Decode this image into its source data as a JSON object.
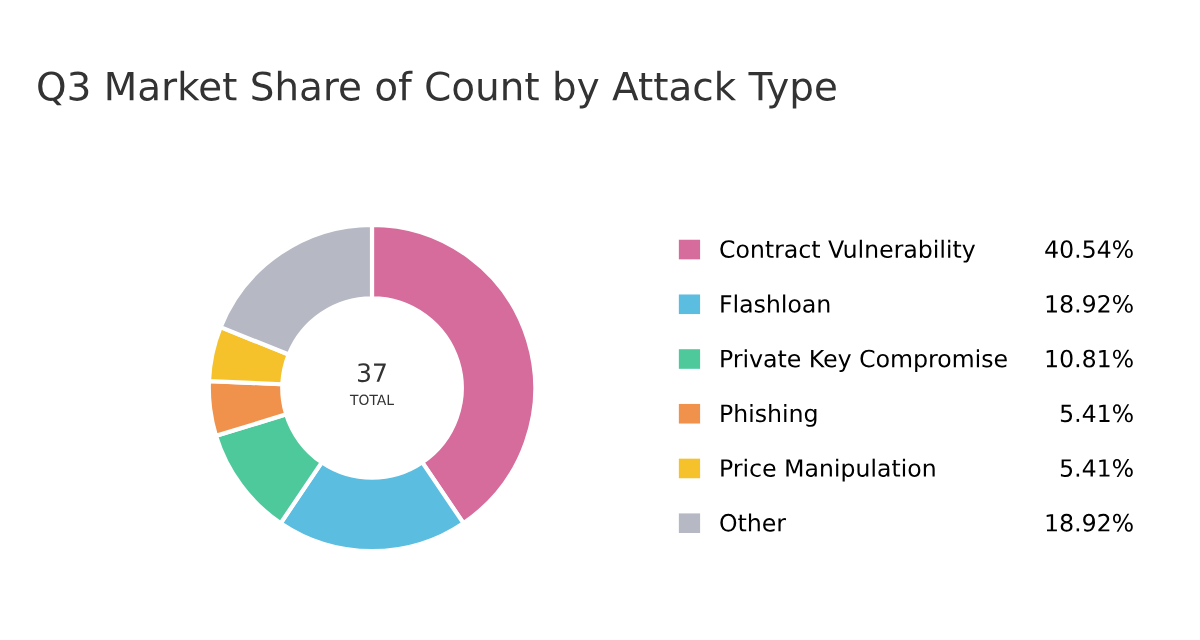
{
  "chart_data": {
    "type": "donut",
    "title": "Q3 Market Share of Count by Attack Type",
    "categories": [
      "Contract Vulnerability",
      "Flashloan",
      "Private Key Compromise",
      "Phishing",
      "Price Manipulation",
      "Other"
    ],
    "values": [
      40.54,
      18.92,
      10.81,
      5.41,
      5.41,
      18.92
    ],
    "value_labels": [
      "40.54%",
      "18.92%",
      "10.81%",
      "5.41%",
      "5.41%",
      "18.92%"
    ],
    "colors": [
      "#d66c9c",
      "#5bbde0",
      "#4ec99c",
      "#f0914c",
      "#f5c22c",
      "#b6b9c4"
    ],
    "annotations": [
      "37",
      "TOTAL"
    ],
    "legend": "right"
  }
}
